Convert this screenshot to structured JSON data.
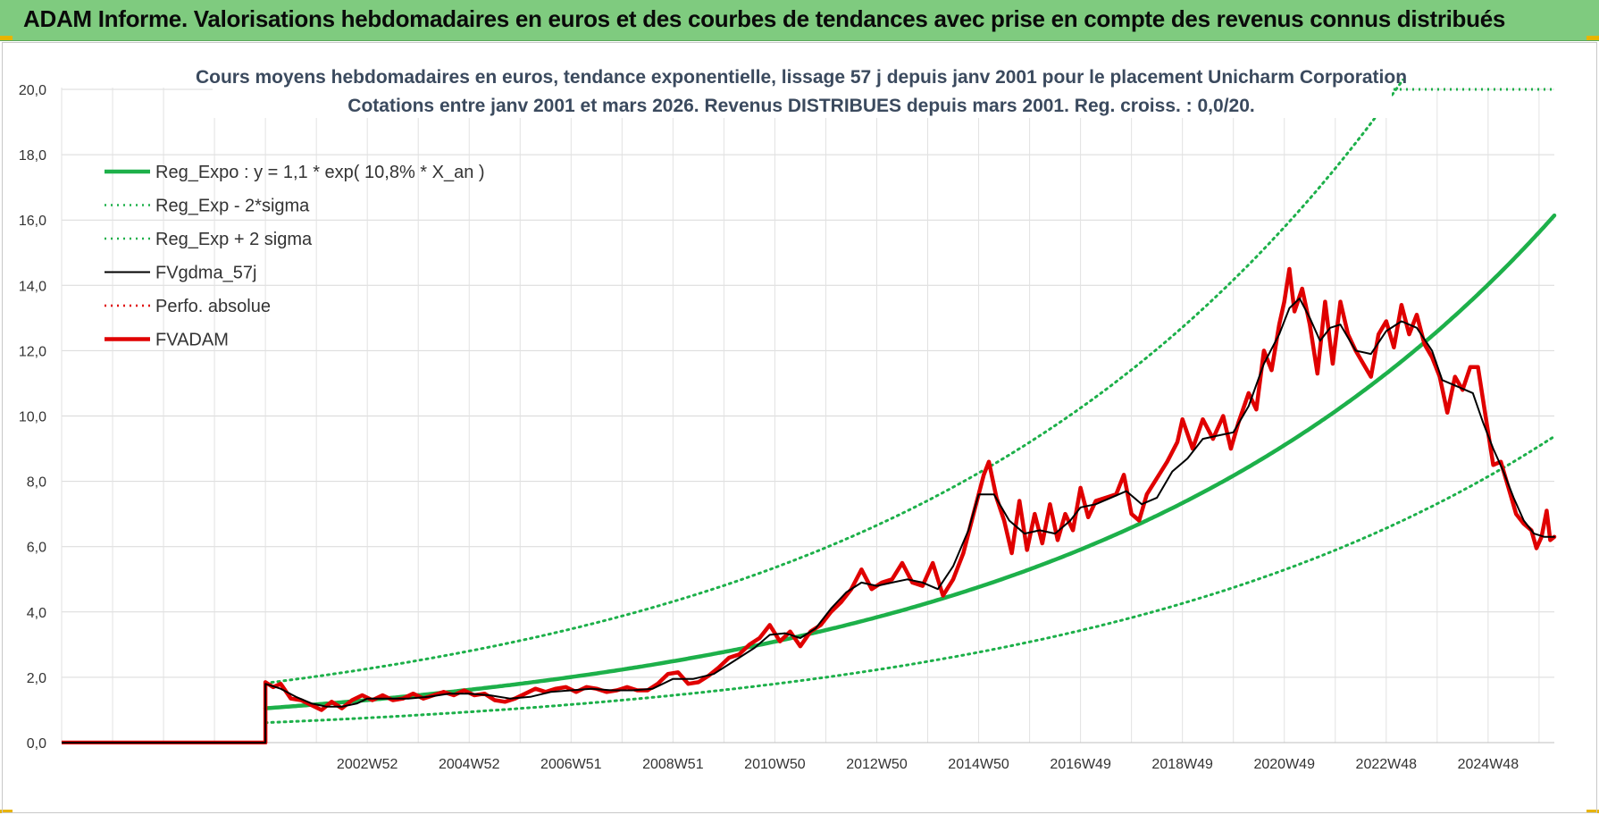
{
  "banner": {
    "title": "ADAM Informe. Valorisations hebdomadaires en euros et des courbes de tendances avec prise en compte des revenus connus distribués"
  },
  "chart_data": {
    "type": "line",
    "title": "Cours moyens hebdomadaires en euros, tendance exponentielle, lissage 57 j depuis janv 2001 pour le placement Unicharm Corporation",
    "subtitle": "Cotations entre janv 2001 et mars 2026. Revenus DISTRIBUES depuis mars 2001. Reg. croiss. : 0,0/20.",
    "xlabel": "",
    "ylabel": "",
    "x_range_years": [
      1997.0,
      2026.3
    ],
    "ylim": [
      0,
      20
    ],
    "y_ticks": [
      "0,0",
      "2,0",
      "4,0",
      "6,0",
      "8,0",
      "10,0",
      "12,0",
      "14,0",
      "16,0",
      "18,0",
      "20,0"
    ],
    "x_ticks": [
      {
        "label": "2002W52",
        "year": 2003.0
      },
      {
        "label": "2004W52",
        "year": 2005.0
      },
      {
        "label": "2006W51",
        "year": 2007.0
      },
      {
        "label": "2008W51",
        "year": 2009.0
      },
      {
        "label": "2010W50",
        "year": 2011.0
      },
      {
        "label": "2012W50",
        "year": 2013.0
      },
      {
        "label": "2014W50",
        "year": 2015.0
      },
      {
        "label": "2016W49",
        "year": 2017.0
      },
      {
        "label": "2018W49",
        "year": 2019.0
      },
      {
        "label": "2020W49",
        "year": 2021.0
      },
      {
        "label": "2022W48",
        "year": 2023.0
      },
      {
        "label": "2024W48",
        "year": 2025.0
      }
    ],
    "grid": true,
    "legend_position": "top-left",
    "series": [
      {
        "name": "Reg_Expo : y = 1,1 * exp( 10,8% *  X_an )",
        "color": "#1db04a",
        "style": "solid-thick",
        "start_year": 2001.0,
        "base": 1.05,
        "rate": 0.108
      },
      {
        "name": "Reg_Exp - 2*sigma",
        "color": "#1db04a",
        "style": "dotted",
        "start_year": 2001.0,
        "base": 0.61,
        "rate": 0.108
      },
      {
        "name": "Reg_Exp + 2 sigma",
        "color": "#1db04a",
        "style": "dotted",
        "start_year": 2001.0,
        "base": 1.82,
        "rate": 0.108
      },
      {
        "name": "FVgdma_57j",
        "color": "#000000",
        "style": "solid",
        "points": [
          [
            1997.0,
            0
          ],
          [
            2001.0,
            0
          ],
          [
            2001.0,
            1.8
          ],
          [
            2001.3,
            1.65
          ],
          [
            2001.6,
            1.4
          ],
          [
            2001.9,
            1.2
          ],
          [
            2002.2,
            1.1
          ],
          [
            2002.5,
            1.1
          ],
          [
            2002.8,
            1.2
          ],
          [
            2003.0,
            1.35
          ],
          [
            2003.4,
            1.35
          ],
          [
            2003.8,
            1.35
          ],
          [
            2004.2,
            1.4
          ],
          [
            2004.6,
            1.5
          ],
          [
            2005.0,
            1.5
          ],
          [
            2005.4,
            1.45
          ],
          [
            2005.8,
            1.35
          ],
          [
            2006.2,
            1.4
          ],
          [
            2006.6,
            1.55
          ],
          [
            2007.0,
            1.6
          ],
          [
            2007.4,
            1.65
          ],
          [
            2007.8,
            1.6
          ],
          [
            2008.2,
            1.6
          ],
          [
            2008.6,
            1.65
          ],
          [
            2009.0,
            1.95
          ],
          [
            2009.4,
            1.95
          ],
          [
            2009.8,
            2.1
          ],
          [
            2010.2,
            2.5
          ],
          [
            2010.6,
            2.9
          ],
          [
            2010.9,
            3.3
          ],
          [
            2011.2,
            3.35
          ],
          [
            2011.5,
            3.2
          ],
          [
            2011.8,
            3.5
          ],
          [
            2012.1,
            4.1
          ],
          [
            2012.4,
            4.6
          ],
          [
            2012.7,
            4.9
          ],
          [
            2013.0,
            4.8
          ],
          [
            2013.3,
            4.9
          ],
          [
            2013.6,
            5.0
          ],
          [
            2013.9,
            4.9
          ],
          [
            2014.2,
            4.7
          ],
          [
            2014.5,
            5.4
          ],
          [
            2014.8,
            6.5
          ],
          [
            2015.0,
            7.6
          ],
          [
            2015.3,
            7.6
          ],
          [
            2015.6,
            6.8
          ],
          [
            2015.9,
            6.4
          ],
          [
            2016.2,
            6.5
          ],
          [
            2016.5,
            6.4
          ],
          [
            2016.8,
            6.8
          ],
          [
            2017.0,
            7.2
          ],
          [
            2017.3,
            7.3
          ],
          [
            2017.6,
            7.5
          ],
          [
            2017.9,
            7.7
          ],
          [
            2018.2,
            7.3
          ],
          [
            2018.5,
            7.5
          ],
          [
            2018.8,
            8.3
          ],
          [
            2019.1,
            8.7
          ],
          [
            2019.4,
            9.3
          ],
          [
            2019.7,
            9.4
          ],
          [
            2020.0,
            9.5
          ],
          [
            2020.3,
            10.3
          ],
          [
            2020.6,
            11.6
          ],
          [
            2020.9,
            12.5
          ],
          [
            2021.1,
            13.3
          ],
          [
            2021.3,
            13.6
          ],
          [
            2021.5,
            13.0
          ],
          [
            2021.7,
            12.3
          ],
          [
            2021.9,
            12.7
          ],
          [
            2022.1,
            12.8
          ],
          [
            2022.4,
            12.0
          ],
          [
            2022.7,
            11.9
          ],
          [
            2023.0,
            12.6
          ],
          [
            2023.3,
            12.9
          ],
          [
            2023.6,
            12.7
          ],
          [
            2023.9,
            12.0
          ],
          [
            2024.1,
            11.1
          ],
          [
            2024.4,
            10.9
          ],
          [
            2024.7,
            10.7
          ],
          [
            2024.9,
            9.8
          ],
          [
            2025.1,
            9.0
          ],
          [
            2025.3,
            8.3
          ],
          [
            2025.5,
            7.5
          ],
          [
            2025.7,
            6.8
          ],
          [
            2025.9,
            6.4
          ],
          [
            2026.1,
            6.3
          ],
          [
            2026.3,
            6.3
          ]
        ]
      },
      {
        "name": "Perfo. absolue",
        "color": "#e00000",
        "style": "dotted"
      },
      {
        "name": "FVADAM",
        "color": "#e00000",
        "style": "solid-thick",
        "points": [
          [
            1997.0,
            0
          ],
          [
            2001.0,
            0
          ],
          [
            2001.0,
            1.85
          ],
          [
            2001.15,
            1.7
          ],
          [
            2001.3,
            1.8
          ],
          [
            2001.5,
            1.35
          ],
          [
            2001.7,
            1.3
          ],
          [
            2001.9,
            1.15
          ],
          [
            2002.1,
            1.0
          ],
          [
            2002.3,
            1.25
          ],
          [
            2002.5,
            1.05
          ],
          [
            2002.7,
            1.3
          ],
          [
            2002.9,
            1.45
          ],
          [
            2003.1,
            1.3
          ],
          [
            2003.3,
            1.45
          ],
          [
            2003.5,
            1.3
          ],
          [
            2003.7,
            1.35
          ],
          [
            2003.9,
            1.5
          ],
          [
            2004.1,
            1.35
          ],
          [
            2004.3,
            1.45
          ],
          [
            2004.5,
            1.55
          ],
          [
            2004.7,
            1.45
          ],
          [
            2004.9,
            1.6
          ],
          [
            2005.1,
            1.45
          ],
          [
            2005.3,
            1.5
          ],
          [
            2005.5,
            1.3
          ],
          [
            2005.7,
            1.25
          ],
          [
            2005.9,
            1.35
          ],
          [
            2006.1,
            1.5
          ],
          [
            2006.3,
            1.65
          ],
          [
            2006.5,
            1.55
          ],
          [
            2006.7,
            1.65
          ],
          [
            2006.9,
            1.7
          ],
          [
            2007.1,
            1.55
          ],
          [
            2007.3,
            1.7
          ],
          [
            2007.5,
            1.65
          ],
          [
            2007.7,
            1.55
          ],
          [
            2007.9,
            1.6
          ],
          [
            2008.1,
            1.7
          ],
          [
            2008.3,
            1.6
          ],
          [
            2008.5,
            1.6
          ],
          [
            2008.7,
            1.8
          ],
          [
            2008.9,
            2.1
          ],
          [
            2009.1,
            2.15
          ],
          [
            2009.3,
            1.8
          ],
          [
            2009.5,
            1.85
          ],
          [
            2009.7,
            2.05
          ],
          [
            2009.9,
            2.3
          ],
          [
            2010.1,
            2.6
          ],
          [
            2010.3,
            2.7
          ],
          [
            2010.5,
            3.0
          ],
          [
            2010.7,
            3.2
          ],
          [
            2010.9,
            3.6
          ],
          [
            2011.1,
            3.1
          ],
          [
            2011.3,
            3.4
          ],
          [
            2011.5,
            2.95
          ],
          [
            2011.7,
            3.4
          ],
          [
            2011.9,
            3.6
          ],
          [
            2012.1,
            4.0
          ],
          [
            2012.3,
            4.3
          ],
          [
            2012.5,
            4.7
          ],
          [
            2012.7,
            5.3
          ],
          [
            2012.9,
            4.7
          ],
          [
            2013.1,
            4.9
          ],
          [
            2013.3,
            5.0
          ],
          [
            2013.5,
            5.5
          ],
          [
            2013.7,
            4.9
          ],
          [
            2013.9,
            4.8
          ],
          [
            2014.1,
            5.5
          ],
          [
            2014.3,
            4.5
          ],
          [
            2014.5,
            5.0
          ],
          [
            2014.7,
            5.8
          ],
          [
            2014.9,
            7.0
          ],
          [
            2015.1,
            8.2
          ],
          [
            2015.2,
            8.6
          ],
          [
            2015.35,
            7.5
          ],
          [
            2015.5,
            6.8
          ],
          [
            2015.65,
            5.8
          ],
          [
            2015.8,
            7.4
          ],
          [
            2015.95,
            5.9
          ],
          [
            2016.1,
            7.0
          ],
          [
            2016.25,
            6.1
          ],
          [
            2016.4,
            7.3
          ],
          [
            2016.55,
            6.2
          ],
          [
            2016.7,
            7.0
          ],
          [
            2016.85,
            6.5
          ],
          [
            2017.0,
            7.8
          ],
          [
            2017.15,
            6.9
          ],
          [
            2017.3,
            7.4
          ],
          [
            2017.5,
            7.5
          ],
          [
            2017.7,
            7.6
          ],
          [
            2017.85,
            8.2
          ],
          [
            2018.0,
            7.0
          ],
          [
            2018.15,
            6.8
          ],
          [
            2018.3,
            7.6
          ],
          [
            2018.5,
            8.1
          ],
          [
            2018.7,
            8.6
          ],
          [
            2018.9,
            9.2
          ],
          [
            2019.0,
            9.9
          ],
          [
            2019.2,
            9.0
          ],
          [
            2019.4,
            9.9
          ],
          [
            2019.6,
            9.3
          ],
          [
            2019.8,
            10.0
          ],
          [
            2019.95,
            9.0
          ],
          [
            2020.1,
            9.8
          ],
          [
            2020.3,
            10.7
          ],
          [
            2020.45,
            10.2
          ],
          [
            2020.6,
            12.0
          ],
          [
            2020.75,
            11.4
          ],
          [
            2020.9,
            12.8
          ],
          [
            2021.0,
            13.5
          ],
          [
            2021.1,
            14.5
          ],
          [
            2021.2,
            13.2
          ],
          [
            2021.35,
            13.9
          ],
          [
            2021.5,
            12.8
          ],
          [
            2021.65,
            11.3
          ],
          [
            2021.8,
            13.5
          ],
          [
            2021.95,
            11.6
          ],
          [
            2022.1,
            13.5
          ],
          [
            2022.25,
            12.5
          ],
          [
            2022.4,
            12.0
          ],
          [
            2022.55,
            11.6
          ],
          [
            2022.7,
            11.2
          ],
          [
            2022.85,
            12.5
          ],
          [
            2023.0,
            12.9
          ],
          [
            2023.15,
            12.1
          ],
          [
            2023.3,
            13.4
          ],
          [
            2023.45,
            12.5
          ],
          [
            2023.6,
            13.1
          ],
          [
            2023.75,
            12.2
          ],
          [
            2023.9,
            11.8
          ],
          [
            2024.05,
            11.2
          ],
          [
            2024.2,
            10.1
          ],
          [
            2024.35,
            11.2
          ],
          [
            2024.5,
            10.8
          ],
          [
            2024.65,
            11.5
          ],
          [
            2024.8,
            11.5
          ],
          [
            2024.95,
            10.0
          ],
          [
            2025.1,
            8.5
          ],
          [
            2025.25,
            8.6
          ],
          [
            2025.4,
            7.8
          ],
          [
            2025.55,
            7.0
          ],
          [
            2025.7,
            6.7
          ],
          [
            2025.85,
            6.5
          ],
          [
            2025.95,
            5.95
          ],
          [
            2026.05,
            6.3
          ],
          [
            2026.15,
            7.1
          ],
          [
            2026.22,
            6.2
          ],
          [
            2026.3,
            6.3
          ]
        ]
      }
    ]
  }
}
